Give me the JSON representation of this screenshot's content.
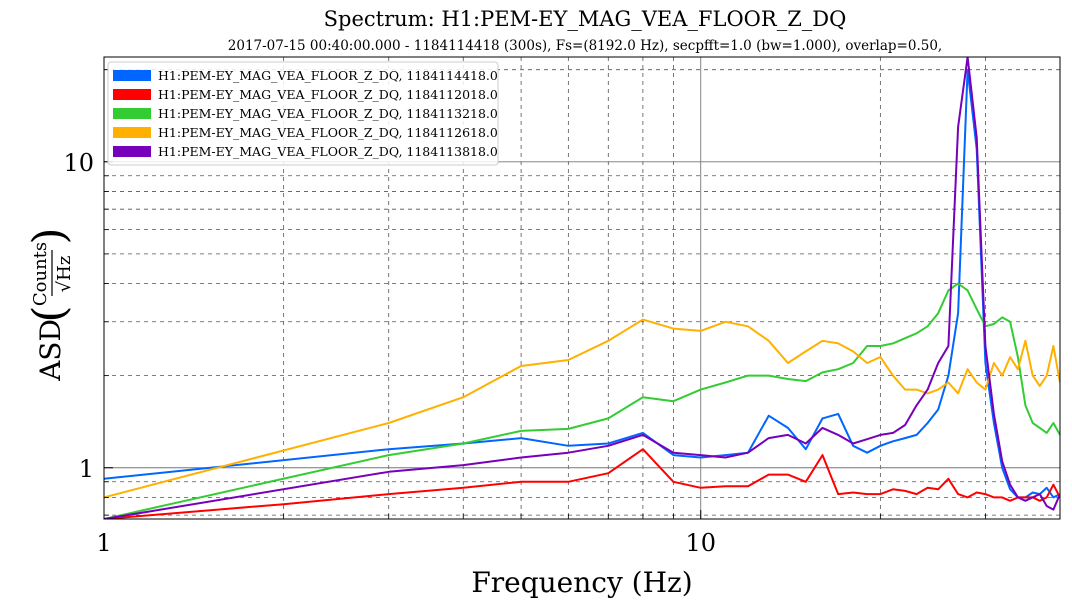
{
  "chart_data": {
    "type": "line",
    "title": "Spectrum: H1:PEM-EY_MAG_VEA_FLOOR_Z_DQ",
    "subtitle": "2017-07-15 00:40:00.000 - 1184114418 (300s), Fs=(8192.0 Hz), secpfft=1.0 (bw=1.000), overlap=0.50,",
    "xlabel": "Frequency (Hz)",
    "ylabel": "ASD (Counts/√Hz)",
    "ylabel_prefix": "ASD",
    "ylabel_num": "Counts",
    "ylabel_den": "√Hz",
    "x_scale": "log",
    "y_scale": "log",
    "xlim": [
      1,
      40
    ],
    "ylim": [
      0.68,
      22
    ],
    "x_ticks": [
      1,
      10
    ],
    "x_tick_labels": [
      "1",
      "10"
    ],
    "y_ticks": [
      1,
      10
    ],
    "y_tick_labels": [
      "1",
      "10"
    ],
    "grid": true,
    "legend_position": "top-left",
    "series": [
      {
        "name": "H1:PEM-EY_MAG_VEA_FLOOR_Z_DQ, 1184114418.0",
        "color": "#0066ff",
        "x": [
          1,
          3,
          4,
          5,
          6,
          7,
          8,
          9,
          10,
          11,
          12,
          13,
          14,
          15,
          16,
          17,
          18,
          19,
          20,
          21,
          22,
          23,
          24,
          25,
          26,
          27,
          28,
          29,
          30,
          31,
          32,
          33,
          34,
          35,
          36,
          37,
          38,
          39,
          40
        ],
        "y": [
          0.92,
          1.15,
          1.2,
          1.25,
          1.18,
          1.2,
          1.3,
          1.1,
          1.08,
          1.1,
          1.12,
          1.48,
          1.35,
          1.15,
          1.45,
          1.5,
          1.18,
          1.12,
          1.18,
          1.22,
          1.25,
          1.28,
          1.4,
          1.55,
          2.0,
          3.2,
          20,
          11,
          2.2,
          1.4,
          1.0,
          0.85,
          0.8,
          0.8,
          0.83,
          0.82,
          0.86,
          0.8,
          0.82
        ]
      },
      {
        "name": "H1:PEM-EY_MAG_VEA_FLOOR_Z_DQ, 1184112018.0",
        "color": "#ff0000",
        "x": [
          1,
          2,
          3,
          4,
          5,
          6,
          7,
          8,
          9,
          10,
          11,
          12,
          13,
          14,
          15,
          16,
          17,
          18,
          19,
          20,
          21,
          22,
          23,
          24,
          25,
          26,
          27,
          28,
          29,
          30,
          31,
          32,
          33,
          34,
          35,
          36,
          37,
          38,
          39,
          40
        ],
        "y": [
          0.68,
          0.76,
          0.82,
          0.86,
          0.9,
          0.9,
          0.96,
          1.15,
          0.9,
          0.86,
          0.87,
          0.87,
          0.95,
          0.95,
          0.9,
          1.1,
          0.82,
          0.83,
          0.82,
          0.82,
          0.85,
          0.84,
          0.82,
          0.86,
          0.85,
          0.92,
          0.82,
          0.8,
          0.83,
          0.82,
          0.8,
          0.8,
          0.78,
          0.8,
          0.8,
          0.8,
          0.78,
          0.8,
          0.88,
          0.8
        ]
      },
      {
        "name": "H1:PEM-EY_MAG_VEA_FLOOR_Z_DQ, 1184113218.0",
        "color": "#33cc33",
        "x": [
          1,
          3,
          4,
          5,
          6,
          7,
          8,
          9,
          10,
          11,
          12,
          13,
          14,
          15,
          16,
          17,
          18,
          19,
          20,
          21,
          22,
          23,
          24,
          25,
          26,
          27,
          28,
          29,
          30,
          31,
          32,
          33,
          34,
          35,
          36,
          37,
          38,
          39,
          40
        ],
        "y": [
          0.68,
          1.1,
          1.2,
          1.32,
          1.34,
          1.45,
          1.7,
          1.65,
          1.8,
          1.9,
          2.0,
          2.0,
          1.95,
          1.92,
          2.05,
          2.1,
          2.2,
          2.5,
          2.5,
          2.55,
          2.65,
          2.75,
          2.9,
          3.2,
          3.8,
          4.0,
          3.8,
          3.3,
          2.9,
          2.95,
          3.1,
          3.0,
          2.3,
          1.6,
          1.4,
          1.35,
          1.3,
          1.4,
          1.28
        ]
      },
      {
        "name": "H1:PEM-EY_MAG_VEA_FLOOR_Z_DQ, 1184112618.0",
        "color": "#ffb000",
        "x": [
          1,
          3,
          4,
          5,
          6,
          7,
          8,
          9,
          10,
          11,
          12,
          13,
          14,
          15,
          16,
          17,
          18,
          19,
          20,
          21,
          22,
          23,
          24,
          25,
          26,
          27,
          28,
          29,
          30,
          31,
          32,
          33,
          34,
          35,
          36,
          37,
          38,
          39,
          40
        ],
        "y": [
          0.8,
          1.4,
          1.7,
          2.15,
          2.25,
          2.6,
          3.05,
          2.85,
          2.8,
          3.0,
          2.9,
          2.6,
          2.2,
          2.4,
          2.6,
          2.55,
          2.4,
          2.2,
          2.3,
          2.0,
          1.8,
          1.8,
          1.75,
          1.8,
          1.9,
          1.75,
          2.1,
          1.9,
          1.8,
          2.2,
          2.0,
          2.3,
          2.1,
          2.6,
          2.0,
          1.85,
          2.0,
          2.5,
          1.9
        ]
      },
      {
        "name": "H1:PEM-EY_MAG_VEA_FLOOR_Z_DQ, 1184113818.0",
        "color": "#7700bb",
        "x": [
          1,
          3,
          4,
          5,
          6,
          7,
          8,
          9,
          10,
          11,
          12,
          13,
          14,
          15,
          16,
          17,
          18,
          19,
          20,
          21,
          22,
          23,
          24,
          25,
          26,
          27,
          28,
          29,
          30,
          31,
          32,
          33,
          34,
          35,
          36,
          37,
          38,
          39,
          40
        ],
        "y": [
          0.68,
          0.97,
          1.02,
          1.08,
          1.12,
          1.18,
          1.28,
          1.12,
          1.1,
          1.08,
          1.12,
          1.25,
          1.28,
          1.2,
          1.35,
          1.28,
          1.2,
          1.24,
          1.28,
          1.3,
          1.38,
          1.6,
          1.8,
          2.2,
          2.5,
          13,
          22,
          12,
          2.5,
          1.5,
          1.05,
          0.88,
          0.8,
          0.78,
          0.8,
          0.82,
          0.75,
          0.73,
          0.82
        ]
      }
    ]
  }
}
